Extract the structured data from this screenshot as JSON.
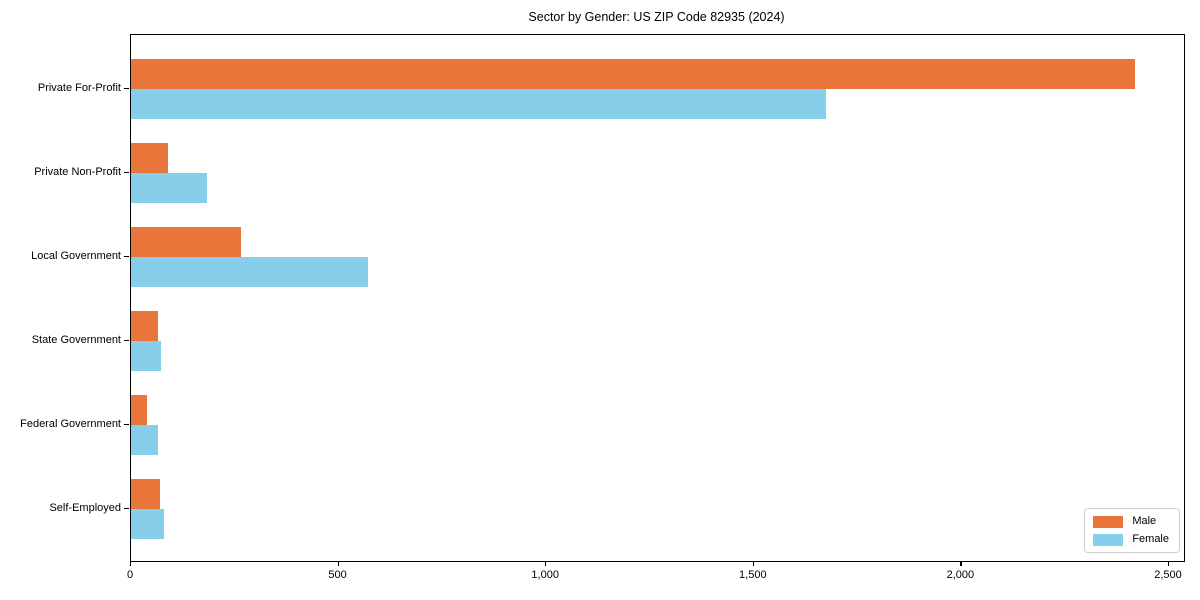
{
  "title": "Sector by Gender: US ZIP Code 82935 (2024)",
  "colors": {
    "male": "#E8763B",
    "female": "#87CEEB",
    "frame": "#000000",
    "legend_border": "#CCCCCC",
    "background": "#FFFFFF"
  },
  "chart_data": {
    "type": "bar",
    "orientation": "horizontal",
    "title": "Sector by Gender: US ZIP Code 82935 (2024)",
    "categories": [
      "Private For-Profit",
      "Private Non-Profit",
      "Local Government",
      "State Government",
      "Federal Government",
      "Self-Employed"
    ],
    "series": [
      {
        "name": "Male",
        "color": "#E8763B",
        "values": [
          2418,
          90,
          266,
          66,
          38,
          71
        ]
      },
      {
        "name": "Female",
        "color": "#87CEEB",
        "values": [
          1675,
          183,
          572,
          72,
          64,
          80
        ]
      }
    ],
    "xlabel": "",
    "ylabel": "",
    "xlim": [
      0,
      2500
    ],
    "x_ticks": [
      0,
      500,
      1000,
      1500,
      2000,
      2500
    ],
    "x_tick_labels": [
      "0",
      "500",
      "1,000",
      "1,500",
      "2,000",
      "2,500"
    ],
    "grid": false,
    "legend": {
      "position": "lower right",
      "entries": [
        "Male",
        "Female"
      ]
    }
  }
}
